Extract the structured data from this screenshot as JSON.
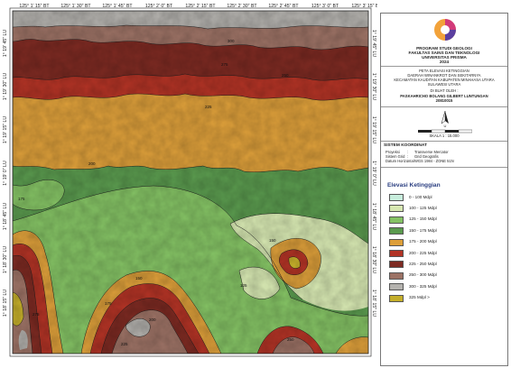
{
  "map": {
    "top_ticks": [
      "125° 1' 15\" BT",
      "125° 1' 30\" BT",
      "125° 1' 45\" BT",
      "125° 2' 0\" BT",
      "125° 2' 15\" BT",
      "125° 2' 30\" BT",
      "125° 2' 45\" BT",
      "125° 3' 0\" BT",
      "125° 3' 15\" BT"
    ],
    "left_ticks": [
      "1° 19' 45\" LU",
      "1° 19' 30\" LU",
      "1° 19' 15\" LU",
      "1° 19' 0\" LU",
      "1° 18' 45\" LU",
      "1° 18' 30\" LU",
      "1° 18' 15\" LU"
    ],
    "right_ticks": [
      "1° 19' 45\" LU",
      "1° 19' 30\" LU",
      "1° 19' 15\" LU",
      "1° 19' 0\" LU",
      "1° 18' 45\" LU",
      "1° 18' 30\" LU",
      "1° 18' 15\" LU"
    ],
    "contour_labels": [
      "300",
      "275",
      "250",
      "225",
      "200",
      "175",
      "150",
      "125",
      "150",
      "175",
      "200",
      "225",
      "250",
      "275"
    ]
  },
  "panel": {
    "institution": [
      "PROGRAM STUDI GEOLOGI",
      "FAKULTAS SAINS DAN TEKNOLOGI",
      "UNIVERSITAS PRISMA",
      "2024"
    ],
    "map_title": [
      "PETA ELEVASI KETINGGIAN",
      "DAERAH WINANKROT DAN SEKITARNYA",
      "KECAMATAN KAUDITAN KABUPATEN MINAHASA UTARA",
      "SULAWESI UTARA"
    ],
    "made_by_label": "DI BUAT OLEH :",
    "author": "PASKAHRICHO BOLANG GILBERT LUNTUNGAN",
    "student_id": "20810015",
    "scale_text": "SKALA 1 : 15.000",
    "north_label": "U",
    "coord_system": {
      "title": "SISTEM KOORDINAT",
      "rows": [
        {
          "label": "Proyeksi",
          "value": "Transverse Mercator"
        },
        {
          "label": "Sistem Grid",
          "value": "Grid Geografis"
        },
        {
          "label": "Datum Horizontal",
          "value": "WGS 1984 - ZONE 51N"
        }
      ]
    },
    "legend": {
      "title": "Elevasi Ketinggian",
      "items": [
        {
          "label": "0 - 100 Mdpl",
          "color": "#c8eedd"
        },
        {
          "label": "100 - 125 Mdpl",
          "color": "#d7e8b2"
        },
        {
          "label": "125 - 150 Mdpl",
          "color": "#84c264"
        },
        {
          "label": "150 - 175 Mdpl",
          "color": "#5a9a4e"
        },
        {
          "label": "175 - 200 Mdpl",
          "color": "#dd9f3a"
        },
        {
          "label": "200 - 225 Mdpl",
          "color": "#b23325"
        },
        {
          "label": "225 - 250 Mdpl",
          "color": "#7d2a22"
        },
        {
          "label": "250 - 300 Mdpl",
          "color": "#9c7265"
        },
        {
          "label": "300 - 325 Mdpl",
          "color": "#b4b2ae"
        },
        {
          "label": "325 Mdpl >",
          "color": "#c4ae2a"
        }
      ]
    }
  }
}
